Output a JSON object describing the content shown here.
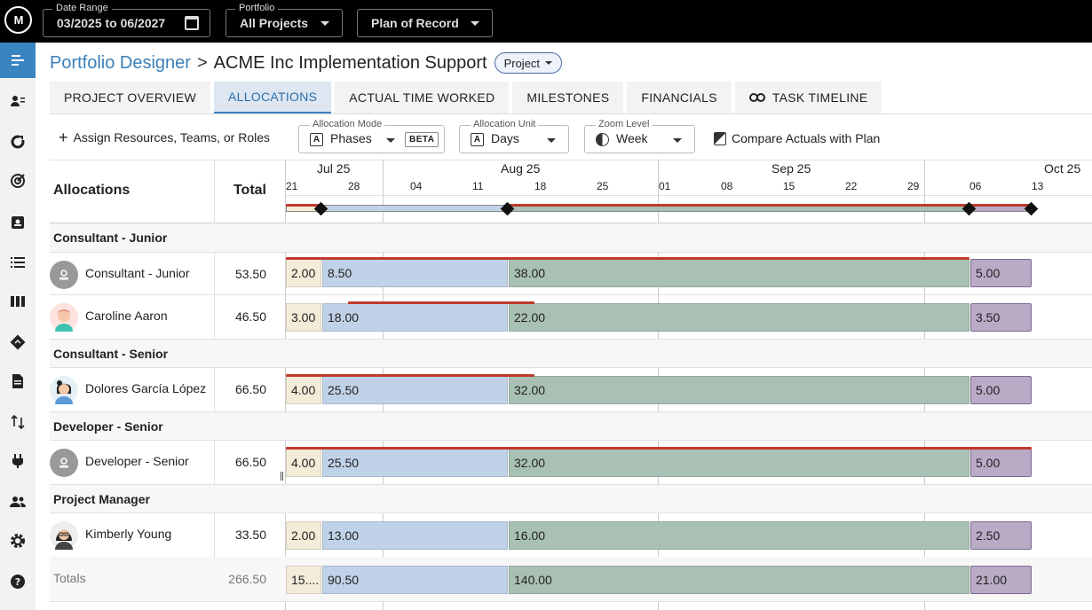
{
  "app": {
    "logo_text": "M"
  },
  "topbar": {
    "date_range": {
      "label": "Date Range",
      "value": "03/2025 to 06/2027"
    },
    "portfolio": {
      "label": "Portfolio",
      "value": "All Projects"
    },
    "plan": {
      "value": "Plan of Record"
    }
  },
  "sidebar": {
    "items": [
      "menu-icon",
      "resources-icon",
      "refresh-icon",
      "target-icon",
      "badge-icon",
      "list-icon",
      "columns-icon",
      "route-icon",
      "document-icon",
      "transfer-icon",
      "plug-icon",
      "people-icon",
      "gear-icon",
      "help-icon"
    ]
  },
  "breadcrumb": {
    "root": "Portfolio Designer",
    "separator": ">",
    "current": "ACME Inc Implementation Support",
    "type_pill": "Project"
  },
  "tabs": [
    {
      "label": "PROJECT OVERVIEW",
      "active": false
    },
    {
      "label": "ALLOCATIONS",
      "active": true
    },
    {
      "label": "ACTUAL TIME WORKED",
      "active": false
    },
    {
      "label": "MILESTONES",
      "active": false
    },
    {
      "label": "FINANCIALS",
      "active": false
    },
    {
      "label": "TASK TIMELINE",
      "active": false
    }
  ],
  "toolbar": {
    "assign_label": "Assign Resources, Teams, or Roles",
    "allocation_mode": {
      "label": "Allocation Mode",
      "value": "Phases",
      "badge": "BETA"
    },
    "allocation_unit": {
      "label": "Allocation Unit",
      "value": "Days"
    },
    "zoom_level": {
      "label": "Zoom Level",
      "value": "Week"
    },
    "compare_label": "Compare Actuals with Plan"
  },
  "grid": {
    "header_allocations": "Allocations",
    "header_total": "Total",
    "months": [
      "Jul 25",
      "Aug 25",
      "Sep 25",
      "Oct 25"
    ],
    "days": [
      "21",
      "28",
      "04",
      "11",
      "18",
      "25",
      "01",
      "08",
      "15",
      "22",
      "29",
      "06",
      "13"
    ]
  },
  "groups": [
    {
      "name": "Consultant - Junior",
      "rows": [
        {
          "name": "Consultant - Junior",
          "avatar": "generic",
          "total": "53.50",
          "values": [
            "2.00",
            "8.50",
            "38.00",
            "5.00"
          ]
        },
        {
          "name": "Caroline Aaron",
          "avatar": "caroline",
          "total": "46.50",
          "values": [
            "3.00",
            "18.00",
            "22.00",
            "3.50"
          ]
        }
      ]
    },
    {
      "name": "Consultant - Senior",
      "rows": [
        {
          "name": "Dolores García López",
          "avatar": "dolores",
          "total": "66.50",
          "values": [
            "4.00",
            "25.50",
            "32.00",
            "5.00"
          ]
        }
      ]
    },
    {
      "name": "Developer - Senior",
      "rows": [
        {
          "name": "Developer - Senior",
          "avatar": "generic",
          "total": "66.50",
          "values": [
            "4.00",
            "25.50",
            "32.00",
            "5.00"
          ]
        }
      ]
    },
    {
      "name": "Project Manager",
      "rows": [
        {
          "name": "Kimberly Young",
          "avatar": "kimberly",
          "total": "33.50",
          "values": [
            "2.00",
            "13.00",
            "16.00",
            "2.50"
          ]
        }
      ]
    }
  ],
  "totals": {
    "label": "Totals",
    "total": "266.50",
    "values": [
      "15....",
      "90.50",
      "140.00",
      "21.00"
    ]
  },
  "colors": {
    "discovery": "#f3ecd9",
    "design": "#c0d2e8",
    "build": "#a9c0b4",
    "deploy": "#b9aac6",
    "over_allocation": "#c0392b",
    "accent": "#3a84c0"
  }
}
